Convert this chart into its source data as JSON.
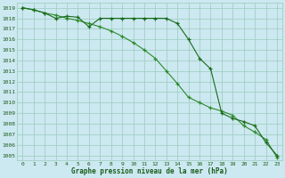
{
  "series1_x": [
    0,
    1,
    2,
    3,
    4,
    5,
    6,
    7,
    8,
    9,
    10,
    11,
    12,
    13,
    14,
    15,
    16,
    17,
    18,
    19,
    20,
    21,
    22,
    23
  ],
  "series1_y": [
    1019,
    1018.8,
    1018.5,
    1018.0,
    1018.2,
    1018.1,
    1017.2,
    1018.0,
    1018.0,
    1018.0,
    1018.0,
    1018.0,
    1018.0,
    1018.0,
    1017.5,
    1016.0,
    1014.2,
    1013.2,
    1009.0,
    1008.5,
    1008.2,
    1007.8,
    1006.2,
    1005.0
  ],
  "series2_x": [
    0,
    1,
    2,
    3,
    4,
    5,
    6,
    7,
    8,
    9,
    10,
    11,
    12,
    13,
    14,
    15,
    16,
    17,
    18,
    19,
    20,
    21,
    22,
    23
  ],
  "series2_y": [
    1019,
    1018.8,
    1018.5,
    1018.3,
    1018.0,
    1017.8,
    1017.5,
    1017.2,
    1016.8,
    1016.3,
    1015.7,
    1015.0,
    1014.2,
    1013.0,
    1011.8,
    1010.5,
    1010.0,
    1009.5,
    1009.2,
    1008.8,
    1007.8,
    1007.2,
    1006.5,
    1004.8
  ],
  "line_color1": "#1a6b1a",
  "line_color2": "#2d8b2d",
  "bg_color": "#cce8f0",
  "grid_color": "#99ccbb",
  "text_color": "#1a5c1a",
  "ylabel_values": [
    1005,
    1006,
    1007,
    1008,
    1009,
    1010,
    1011,
    1012,
    1013,
    1014,
    1015,
    1016,
    1017,
    1018,
    1019
  ],
  "xlabel_label": "Graphe pression niveau de la mer (hPa)",
  "ymin": 1004.5,
  "ymax": 1019.5,
  "xmin": -0.5,
  "xmax": 23.5,
  "figwidth": 3.2,
  "figheight": 2.0,
  "dpi": 100
}
